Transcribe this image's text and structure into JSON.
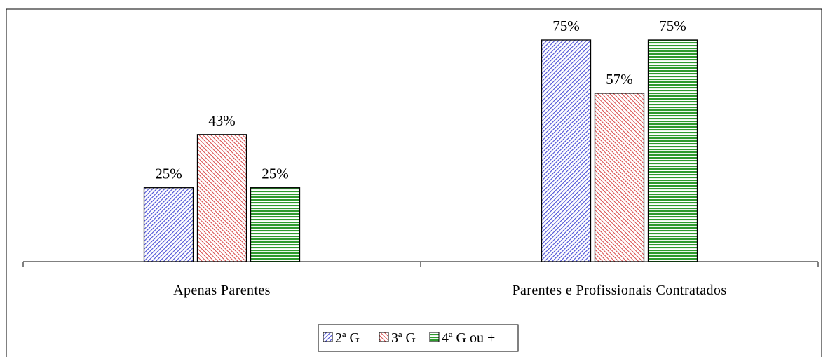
{
  "chart_data": {
    "type": "bar",
    "categories": [
      "Apenas Parentes",
      "Parentes e Profissionais Contratados"
    ],
    "series": [
      {
        "name": "2ª G",
        "values": [
          25,
          75
        ],
        "labels": [
          "25%",
          "75%"
        ]
      },
      {
        "name": "3ª G",
        "values": [
          43,
          57
        ],
        "labels": [
          "43%",
          "57%"
        ]
      },
      {
        "name": "4ª G ou +",
        "values": [
          25,
          75
        ],
        "labels": [
          "25%",
          "75%"
        ]
      }
    ],
    "ylim": [
      0,
      80
    ],
    "grid": false,
    "legend_position": "bottom",
    "colors": [
      "#c9ccf5",
      "#f7c4c4",
      "#9ed99a"
    ],
    "stroke_colors": [
      "#4a4fd6",
      "#d94a4a",
      "#2e9a2e"
    ]
  }
}
